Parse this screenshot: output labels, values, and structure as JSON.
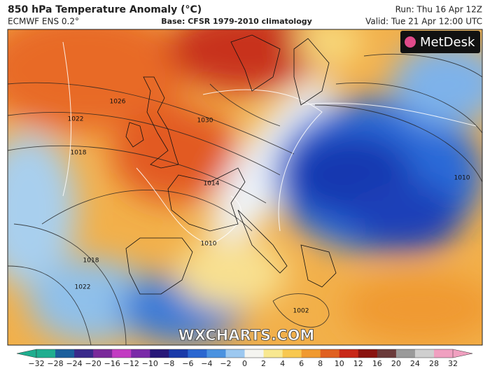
{
  "header": {
    "title": "850 hPa Temperature Anomaly (°C)",
    "model": "ECMWF ENS 0.2°",
    "base": "Base: CFSR 1979-2010 climatology",
    "run": "Run: Thu 16 Apr 12Z",
    "valid": "Valid: Tue 21 Apr 12:00 UTC"
  },
  "logo": "MetDesk",
  "watermark": "WXCHARTS.COM",
  "map": {
    "isobar_labels": [
      "1026",
      "1022",
      "1018",
      "1030",
      "1014",
      "1010",
      "1018",
      "1022",
      "1002",
      "1010"
    ]
  },
  "colorbar": {
    "labels": [
      "−32",
      "−28",
      "−24",
      "−20",
      "−16",
      "−12",
      "−10",
      "−8",
      "−6",
      "−4",
      "−2",
      "0",
      "2",
      "4",
      "6",
      "8",
      "10",
      "12",
      "16",
      "20",
      "24",
      "28",
      "32"
    ],
    "colors": [
      "#1fae8f",
      "#1c5f9c",
      "#3a2a8a",
      "#7a2a9a",
      "#c23cc2",
      "#7a2aa8",
      "#281878",
      "#1a3aa8",
      "#2a66d0",
      "#4a92e0",
      "#9cc8f0",
      "#f4f4f0",
      "#f8e890",
      "#f8c850",
      "#f09a30",
      "#e06020",
      "#c82818",
      "#8a1410",
      "#6a3a3a",
      "#9a9a9a",
      "#cfcfcf",
      "#f0a0c0"
    ]
  }
}
